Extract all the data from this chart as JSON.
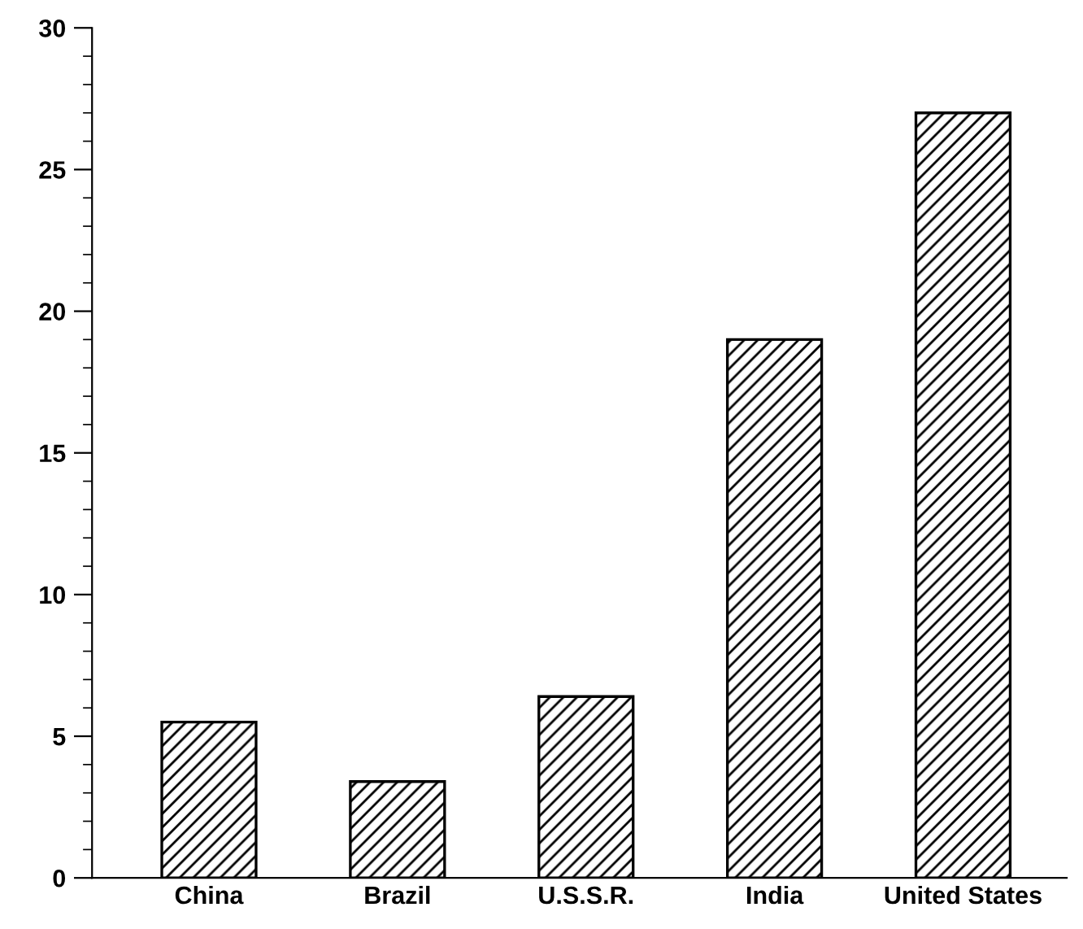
{
  "chart_data": {
    "type": "bar",
    "categories": [
      "China",
      "Brazil",
      "U.S.S.R.",
      "India",
      "United States"
    ],
    "values": [
      5.5,
      3.4,
      6.4,
      19,
      27
    ],
    "color": "#000000",
    "ylim": [
      0,
      30
    ],
    "yticks": [
      0,
      5,
      10,
      15,
      20,
      25,
      30
    ],
    "grid": false
  }
}
